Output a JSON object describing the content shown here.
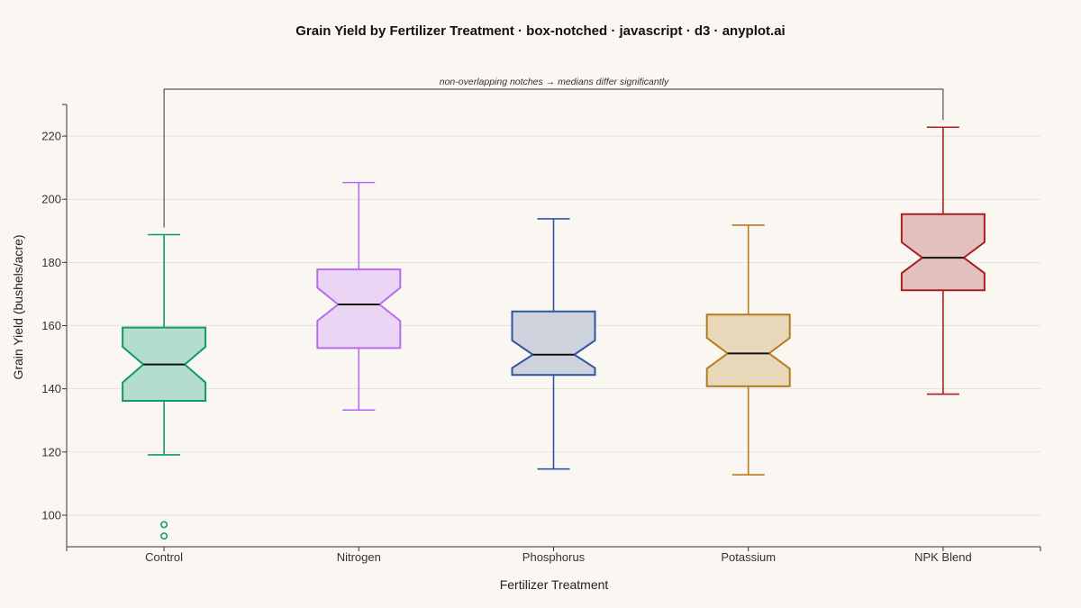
{
  "chart_data": {
    "type": "box-notched",
    "title": "Grain Yield by Fertilizer Treatment · box-notched · javascript · d3 · anyplot.ai",
    "xlabel": "Fertilizer Treatment",
    "ylabel": "Grain Yield (bushels/acre)",
    "ylim": [
      90,
      230
    ],
    "yticks": [
      100,
      120,
      140,
      160,
      180,
      200,
      220
    ],
    "grid": true,
    "categories": [
      "Control",
      "Nitrogen",
      "Phosphorus",
      "Potassium",
      "NPK Blend"
    ],
    "series": [
      {
        "category": "Control",
        "color": "#0f9a6e",
        "fill": "#b5ddce",
        "whisker_low": 119.1,
        "q1": 136.2,
        "notch_low": 142.0,
        "median": 147.7,
        "notch_high": 153.3,
        "q3": 159.4,
        "whisker_high": 188.8,
        "outliers": [
          97.0,
          93.4
        ]
      },
      {
        "category": "Nitrogen",
        "color": "#b96bf0",
        "fill": "#ebd5f5",
        "whisker_low": 133.3,
        "q1": 152.9,
        "notch_low": 161.5,
        "median": 166.7,
        "notch_high": 172.0,
        "q3": 177.8,
        "whisker_high": 205.3,
        "outliers": []
      },
      {
        "category": "Phosphorus",
        "color": "#2f56a0",
        "fill": "#cdd2dc",
        "whisker_low": 114.6,
        "q1": 144.4,
        "notch_low": 146.6,
        "median": 150.8,
        "notch_high": 155.3,
        "q3": 164.5,
        "whisker_high": 193.8,
        "outliers": []
      },
      {
        "category": "Potassium",
        "color": "#b77b1f",
        "fill": "#e9d7b9",
        "whisker_low": 112.8,
        "q1": 140.8,
        "notch_low": 146.4,
        "median": 151.2,
        "notch_high": 156.1,
        "q3": 163.5,
        "whisker_high": 191.8,
        "outliers": []
      },
      {
        "category": "NPK Blend",
        "color": "#a52023",
        "fill": "#e4c0bd",
        "whisker_low": 138.3,
        "q1": 171.2,
        "notch_low": 176.6,
        "median": 181.5,
        "notch_high": 186.4,
        "q3": 195.3,
        "whisker_high": 222.8,
        "outliers": []
      }
    ],
    "annotation": {
      "text": "non-overlapping notches → medians differ significantly",
      "from_category": "Control",
      "to_category": "NPK Blend"
    }
  }
}
